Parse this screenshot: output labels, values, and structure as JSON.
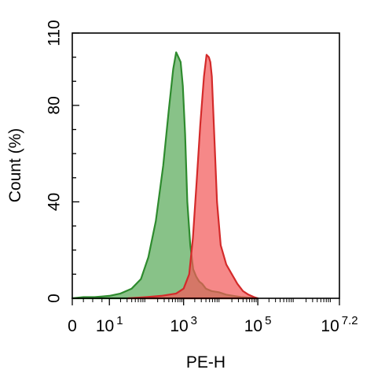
{
  "chart_data": {
    "type": "area",
    "title": "",
    "xlabel": "PE-H",
    "ylabel": "Count  (%)",
    "x_scale": "biexponential-log10",
    "xlim": [
      0,
      7.2
    ],
    "ylim": [
      0,
      110
    ],
    "x_ticks": [
      {
        "value": 0,
        "base": "0",
        "exp": ""
      },
      {
        "value": 1,
        "base": "10",
        "exp": "1"
      },
      {
        "value": 3,
        "base": "10",
        "exp": "3"
      },
      {
        "value": 5,
        "base": "10",
        "exp": "5"
      },
      {
        "value": 7.2,
        "base": "10",
        "exp": "7.2"
      }
    ],
    "y_ticks": [
      0,
      40,
      80,
      110
    ],
    "grid": false,
    "legend": "none",
    "series": [
      {
        "color": "#2e8b2e",
        "fill": "#5aab5a",
        "x": [
          0,
          0.3,
          0.6,
          1.0,
          1.3,
          1.6,
          1.85,
          2.05,
          2.25,
          2.45,
          2.6,
          2.72,
          2.8,
          2.86,
          2.92,
          2.98,
          3.04,
          3.1,
          3.18,
          3.26,
          3.34,
          3.42,
          3.5,
          3.6,
          3.75,
          3.95,
          4.15,
          4.35,
          4.55,
          4.75,
          5.0
        ],
        "y": [
          0,
          0.5,
          0.5,
          1,
          2,
          4,
          8,
          17,
          32,
          55,
          78,
          95,
          102,
          100,
          98,
          88,
          68,
          40,
          22,
          12,
          9,
          7,
          6,
          4,
          3,
          2.5,
          1.5,
          1,
          0.5,
          0.3,
          0
        ]
      },
      {
        "color": "#d42a2a",
        "fill": "#f25a5a",
        "x": [
          1.5,
          2.0,
          2.4,
          2.8,
          3.0,
          3.15,
          3.25,
          3.35,
          3.45,
          3.55,
          3.62,
          3.68,
          3.72,
          3.76,
          3.82,
          3.9,
          4.0,
          4.15,
          4.3,
          4.45,
          4.6,
          4.75,
          4.9,
          5.0
        ],
        "y": [
          0,
          0.5,
          1,
          2,
          4,
          10,
          25,
          48,
          72,
          92,
          101,
          100,
          98,
          92,
          70,
          40,
          22,
          14,
          10,
          6,
          3,
          1.5,
          0.5,
          0
        ]
      }
    ]
  }
}
